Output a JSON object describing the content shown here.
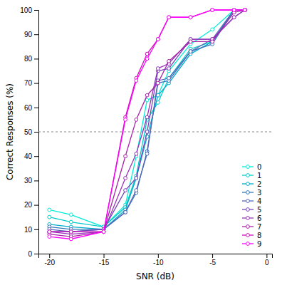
{
  "chart_data": {
    "type": "line",
    "xlabel": "SNR (dB)",
    "ylabel": "Correct Responses (%)",
    "x": [
      -20,
      -18,
      -15,
      -13,
      -12,
      -11,
      -10,
      -9,
      -7,
      -5,
      -3,
      -2
    ],
    "xlim": [
      -21,
      0.5
    ],
    "ylim": [
      0,
      100
    ],
    "xticks": [
      -20,
      -15,
      -10,
      -5,
      0
    ],
    "yticks": [
      0,
      10,
      20,
      30,
      40,
      50,
      60,
      70,
      80,
      90,
      100
    ],
    "reference_line": 50,
    "grid": false,
    "legend": "lower right",
    "marker": "circle",
    "series": [
      {
        "name": "0",
        "color": "#00EED8",
        "values": [
          18,
          16,
          11,
          20,
          40,
          63,
          65,
          75,
          86,
          92,
          100,
          100
        ]
      },
      {
        "name": "1",
        "color": "#00CCCC",
        "values": [
          15,
          13,
          11,
          19,
          32,
          55,
          62,
          72,
          84,
          87,
          100,
          100
        ]
      },
      {
        "name": "2",
        "color": "#00AACC",
        "values": [
          12,
          11,
          10,
          18,
          31,
          48,
          65,
          70,
          82,
          87,
          100,
          100
        ]
      },
      {
        "name": "3",
        "color": "#3377BB",
        "values": [
          11,
          10,
          10,
          17,
          25,
          42,
          70,
          71,
          83,
          86,
          100,
          100
        ]
      },
      {
        "name": "4",
        "color": "#5566BB",
        "values": [
          10,
          9,
          10,
          17,
          26,
          41,
          71,
          72,
          83,
          88,
          100,
          100
        ]
      },
      {
        "name": "5",
        "color": "#7744BB",
        "values": [
          9,
          9,
          10,
          26,
          31,
          50,
          75,
          76,
          88,
          88,
          97,
          100
        ]
      },
      {
        "name": "6",
        "color": "#9933BB",
        "values": [
          9,
          8,
          9,
          31,
          41,
          56,
          76,
          78,
          88,
          88,
          97,
          100
        ]
      },
      {
        "name": "7",
        "color": "#AA22AA",
        "values": [
          8,
          7,
          9,
          40,
          55,
          65,
          70,
          79,
          87,
          87,
          99,
          100
        ]
      },
      {
        "name": "8",
        "color": "#CC11BB",
        "values": [
          9,
          9,
          9,
          56,
          72,
          82,
          88,
          97,
          97,
          100,
          100,
          100
        ]
      },
      {
        "name": "9",
        "color": "#FF00FF",
        "values": [
          7,
          6,
          9,
          55,
          71,
          80,
          88,
          97,
          97,
          100,
          100,
          100
        ]
      }
    ]
  }
}
